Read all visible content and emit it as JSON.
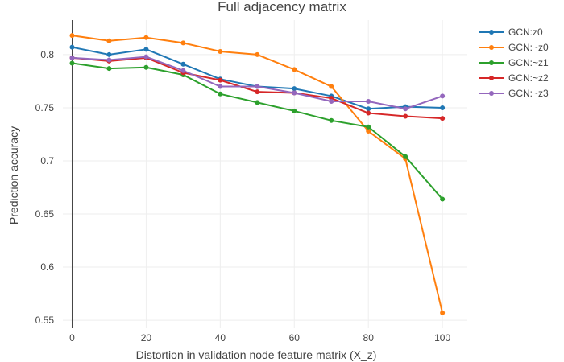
{
  "chart_data": {
    "type": "line",
    "title": "Full adjacency matrix",
    "xlabel": "Distortion in validation node feature matrix (X_z)",
    "ylabel": "Prediction accuracy",
    "x": [
      0,
      10,
      20,
      30,
      40,
      50,
      60,
      70,
      80,
      90,
      100
    ],
    "xlim": [
      -2.5,
      106.5
    ],
    "ylim": [
      0.5425,
      0.8325
    ],
    "xticks": [
      0,
      20,
      40,
      60,
      80,
      100
    ],
    "xtick_labels": [
      "0",
      "20",
      "40",
      "60",
      "80",
      "100"
    ],
    "yticks": [
      0.55,
      0.6,
      0.65,
      0.7,
      0.75,
      0.8
    ],
    "ytick_labels": [
      "0.55",
      "0.6",
      "0.65",
      "0.7",
      "0.75",
      "0.8"
    ],
    "grid": true,
    "legend_position": "top-right",
    "series": [
      {
        "name": "GCN:z0",
        "color": "#1f77b4",
        "values": [
          0.807,
          0.8,
          0.805,
          0.791,
          0.777,
          0.77,
          0.768,
          0.761,
          0.749,
          0.751,
          0.75
        ]
      },
      {
        "name": "GCN:~z0",
        "color": "#ff7f0e",
        "values": [
          0.818,
          0.813,
          0.816,
          0.811,
          0.803,
          0.8,
          0.786,
          0.77,
          0.728,
          0.702,
          0.557
        ]
      },
      {
        "name": "GCN:~z1",
        "color": "#2ca02c",
        "values": [
          0.792,
          0.787,
          0.788,
          0.781,
          0.763,
          0.755,
          0.747,
          0.738,
          0.732,
          0.704,
          0.664
        ]
      },
      {
        "name": "GCN:~z2",
        "color": "#d62728",
        "values": [
          0.797,
          0.794,
          0.797,
          0.783,
          0.776,
          0.765,
          0.764,
          0.759,
          0.745,
          0.742,
          0.74
        ]
      },
      {
        "name": "GCN:~z3",
        "color": "#9467bd",
        "values": [
          0.797,
          0.795,
          0.798,
          0.785,
          0.77,
          0.77,
          0.764,
          0.756,
          0.756,
          0.749,
          0.761
        ]
      }
    ]
  }
}
